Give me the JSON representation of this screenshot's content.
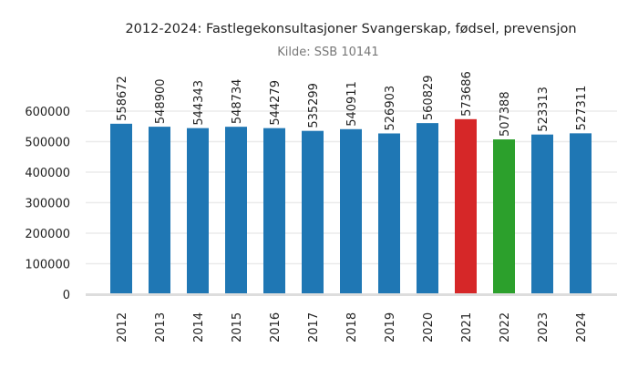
{
  "chart_data": {
    "type": "bar",
    "title": "2012-2024: Fastlegekonsultasjoner Svangerskap, fødsel, prevensjon",
    "subtitle": "Kilde: SSB 10141",
    "xlabel": "",
    "ylabel": "",
    "categories": [
      "2012",
      "2013",
      "2014",
      "2015",
      "2016",
      "2017",
      "2018",
      "2019",
      "2020",
      "2021",
      "2022",
      "2023",
      "2024"
    ],
    "values": [
      558672,
      548900,
      544343,
      548734,
      544279,
      535299,
      540911,
      526903,
      560829,
      573686,
      507388,
      523313,
      527311
    ],
    "colors": [
      "#1f77b4",
      "#1f77b4",
      "#1f77b4",
      "#1f77b4",
      "#1f77b4",
      "#1f77b4",
      "#1f77b4",
      "#1f77b4",
      "#1f77b4",
      "#d62728",
      "#2ca02c",
      "#1f77b4",
      "#1f77b4"
    ],
    "yticks": [
      0,
      100000,
      200000,
      300000,
      400000,
      500000,
      600000
    ],
    "ylim": [
      0,
      600000
    ],
    "grid": true,
    "data_labels": true
  }
}
